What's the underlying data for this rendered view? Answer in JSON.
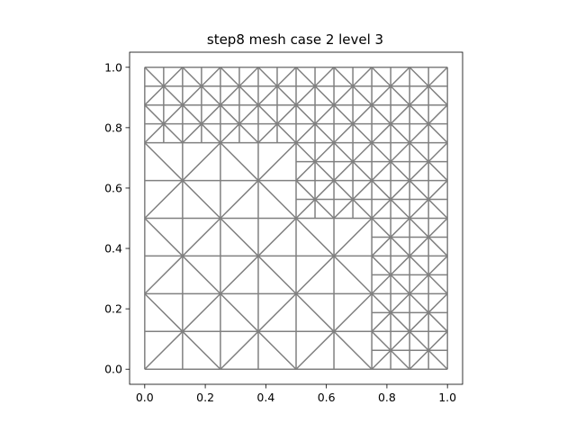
{
  "chart_data": {
    "type": "mesh",
    "title": "step8 mesh case 2 level 3",
    "xlabel": "",
    "ylabel": "",
    "xlim": [
      -0.05,
      1.05
    ],
    "ylim": [
      -0.05,
      1.05
    ],
    "x_ticks": [
      0.0,
      0.2,
      0.4,
      0.6,
      0.8,
      1.0
    ],
    "y_ticks": [
      0.0,
      0.2,
      0.4,
      0.6,
      0.8,
      1.0
    ],
    "x_tick_labels": [
      "0.0",
      "0.2",
      "0.4",
      "0.6",
      "0.8",
      "1.0"
    ],
    "y_tick_labels": [
      "0.0",
      "0.2",
      "0.4",
      "0.6",
      "0.8",
      "1.0"
    ],
    "edge_color": "#808080",
    "grid": false,
    "domain": [
      0.0,
      1.0,
      0.0,
      1.0
    ],
    "base_cells": [
      {
        "x0": 0.0,
        "y0": 0.0,
        "size": 0.25,
        "refine": [
          0.125
        ]
      },
      {
        "x0": 0.25,
        "y0": 0.0,
        "size": 0.25,
        "refine": [
          0.125
        ]
      },
      {
        "x0": 0.5,
        "y0": 0.0,
        "size": 0.25,
        "refine": [
          0.125
        ]
      },
      {
        "x0": 0.75,
        "y0": 0.0,
        "size": 0.25,
        "refine": [
          0.125,
          0.0625
        ]
      },
      {
        "x0": 0.0,
        "y0": 0.25,
        "size": 0.25,
        "refine": [
          0.125
        ]
      },
      {
        "x0": 0.25,
        "y0": 0.25,
        "size": 0.25,
        "refine": [
          0.125
        ]
      },
      {
        "x0": 0.5,
        "y0": 0.25,
        "size": 0.25,
        "refine": [
          0.125
        ]
      },
      {
        "x0": 0.75,
        "y0": 0.25,
        "size": 0.25,
        "refine": [
          0.125,
          0.0625
        ]
      },
      {
        "x0": 0.0,
        "y0": 0.5,
        "size": 0.25,
        "refine": [
          0.125
        ]
      },
      {
        "x0": 0.25,
        "y0": 0.5,
        "size": 0.25,
        "refine": [
          0.125
        ]
      },
      {
        "x0": 0.5,
        "y0": 0.5,
        "size": 0.25,
        "refine": [
          0.125,
          0.0625
        ]
      },
      {
        "x0": 0.75,
        "y0": 0.5,
        "size": 0.25,
        "refine": [
          0.125,
          0.0625
        ]
      },
      {
        "x0": 0.0,
        "y0": 0.75,
        "size": 0.25,
        "refine": [
          0.125,
          0.0625
        ]
      },
      {
        "x0": 0.25,
        "y0": 0.75,
        "size": 0.25,
        "refine": [
          0.125,
          0.0625
        ]
      },
      {
        "x0": 0.5,
        "y0": 0.75,
        "size": 0.25,
        "refine": [
          0.125,
          0.0625
        ]
      },
      {
        "x0": 0.75,
        "y0": 0.75,
        "size": 0.25,
        "refine": [
          0.125,
          0.0625
        ]
      }
    ]
  }
}
